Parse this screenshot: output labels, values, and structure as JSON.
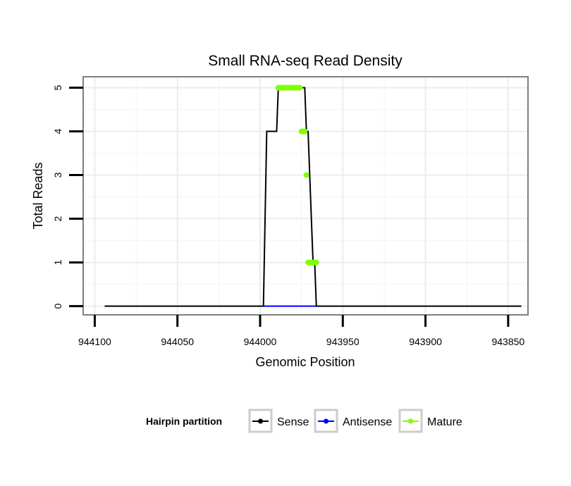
{
  "chart_data": {
    "type": "line",
    "title": "Small RNA-seq Read Density",
    "xlabel": "Genomic Position",
    "ylabel": "Total Reads",
    "xlim": [
      944107,
      943838
    ],
    "ylim": [
      -0.2,
      5.25
    ],
    "x_reversed": true,
    "grid": true,
    "xticks": [
      944100,
      944050,
      944000,
      943950,
      943900,
      943850
    ],
    "xtick_labels": [
      "944100",
      "944050",
      "944000",
      "943950",
      "943900",
      "943850"
    ],
    "yticks": [
      0,
      1,
      2,
      3,
      4,
      5
    ],
    "ytick_labels": [
      "0",
      "1",
      "2",
      "3",
      "4",
      "5"
    ],
    "legend": {
      "position": "bottom",
      "title": "Hairpin partition",
      "entries": [
        "Sense",
        "Antisense",
        "Mature"
      ]
    },
    "series": [
      {
        "name": "Sense",
        "color": "#000000",
        "x": [
          944094,
          943998,
          943996,
          943990,
          943989,
          943985,
          943984,
          943973,
          943972,
          943971,
          943970,
          943968,
          943967,
          943966,
          943842
        ],
        "y": [
          0,
          0,
          4,
          4,
          5,
          5,
          5,
          5,
          4,
          4,
          3,
          1,
          1,
          0,
          0
        ]
      },
      {
        "name": "Antisense",
        "color": "#0000ff",
        "x": [
          943998,
          943966
        ],
        "y": [
          0,
          0
        ]
      },
      {
        "name": "Mature",
        "color": "#7fff00",
        "x": [
          943989,
          943988,
          943987,
          943986,
          943985,
          943984,
          943983,
          943982,
          943981,
          943980,
          943979,
          943978,
          943977,
          943976,
          943975,
          943974,
          943973,
          943972,
          943971,
          943970,
          943969,
          943968,
          943967,
          943966
        ],
        "y": [
          5,
          5,
          5,
          5,
          5,
          5,
          5,
          5,
          5,
          5,
          5,
          5,
          5,
          5,
          4,
          4,
          4,
          3,
          1,
          1,
          1,
          1,
          1,
          1
        ]
      }
    ]
  }
}
